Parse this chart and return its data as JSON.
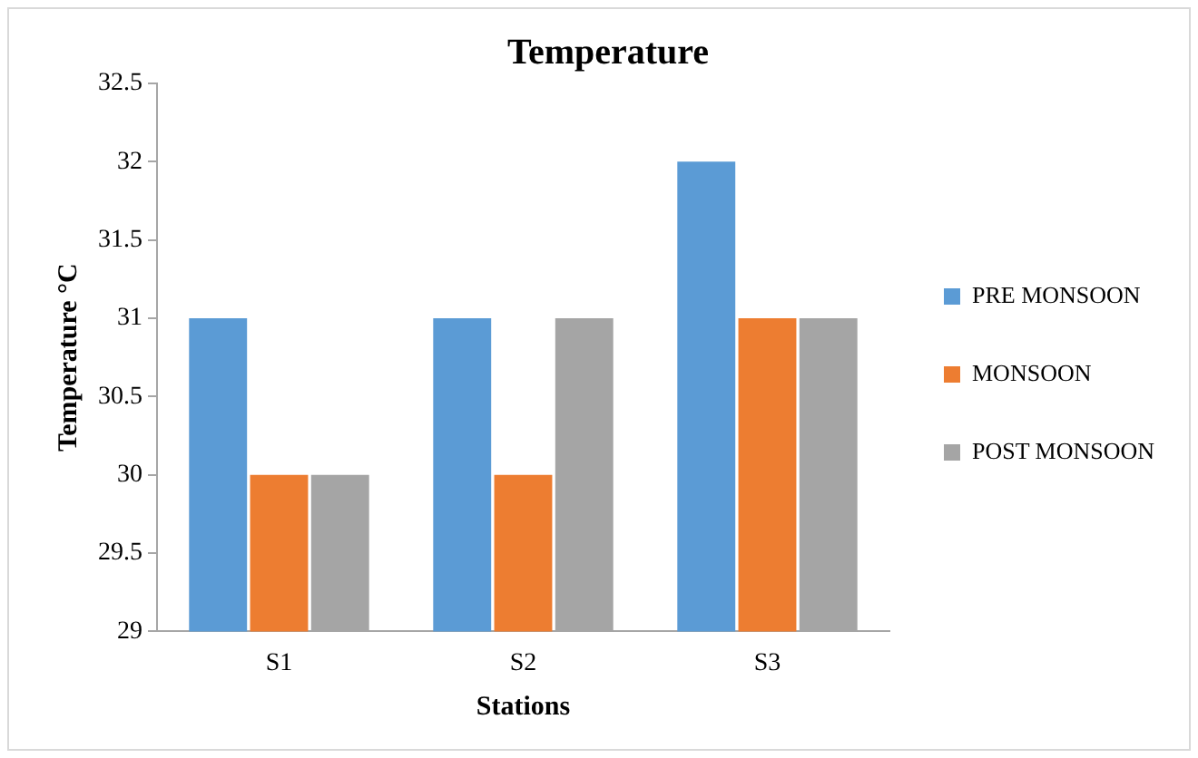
{
  "chart_data": {
    "type": "bar",
    "title": "Temperature",
    "xlabel": "Stations",
    "ylabel": "Temperature °C",
    "categories": [
      "S1",
      "S2",
      "S3"
    ],
    "series": [
      {
        "name": "PRE MONSOON",
        "color": "#5b9bd5",
        "values": [
          31,
          31,
          32
        ]
      },
      {
        "name": "MONSOON",
        "color": "#ed7d31",
        "values": [
          30,
          30,
          31
        ]
      },
      {
        "name": "POST MONSOON",
        "color": "#a5a5a5",
        "values": [
          30,
          31,
          31
        ]
      }
    ],
    "ylim": [
      29,
      32.5
    ],
    "yticks": [
      29,
      29.5,
      30,
      30.5,
      31,
      31.5,
      32,
      32.5
    ],
    "grid": false,
    "legend": "right"
  }
}
